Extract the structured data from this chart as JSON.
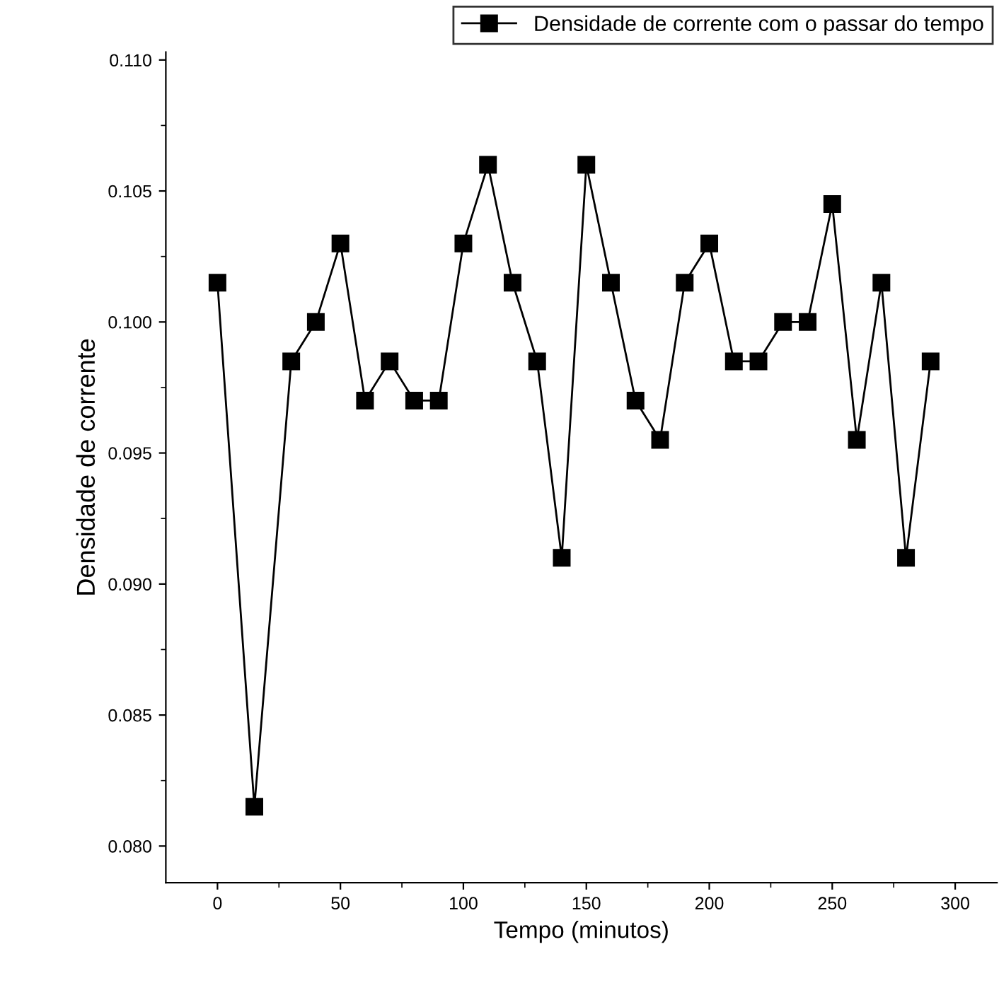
{
  "chart_data": {
    "type": "line",
    "xlabel": "Tempo (minutos)",
    "ylabel": "Densidade de corrente",
    "x": [
      0,
      15,
      30,
      40,
      50,
      60,
      70,
      80,
      90,
      100,
      110,
      120,
      130,
      140,
      150,
      160,
      170,
      180,
      190,
      200,
      210,
      220,
      230,
      240,
      250,
      260,
      270,
      280,
      290
    ],
    "series": [
      {
        "name": "Densidade de corrente com o passar do tempo",
        "color": "#000000",
        "values": [
          0.1015,
          0.0815,
          0.0985,
          0.1,
          0.103,
          0.097,
          0.0985,
          0.097,
          0.097,
          0.103,
          0.106,
          0.1015,
          0.0985,
          0.091,
          0.106,
          0.1015,
          0.097,
          0.0955,
          0.1015,
          0.103,
          0.0985,
          0.0985,
          0.1,
          0.1,
          0.1045,
          0.0955,
          0.1015,
          0.091,
          0.0985
        ]
      }
    ],
    "xlim": [
      -21,
      317
    ],
    "ylim": [
      0.0786,
      0.1103
    ],
    "xticks": [
      0,
      50,
      100,
      150,
      200,
      250,
      300
    ],
    "yticks": [
      {
        "value": 0.08,
        "label": "0.080"
      },
      {
        "value": 0.085,
        "label": "0.085"
      },
      {
        "value": 0.09,
        "label": "0.090"
      },
      {
        "value": 0.095,
        "label": "0.095"
      },
      {
        "value": 0.1,
        "label": "0.100"
      },
      {
        "value": 0.105,
        "label": "0.105"
      },
      {
        "value": 0.11,
        "label": "0.110"
      }
    ],
    "marker": "square",
    "line_style": "solid",
    "grid": false,
    "legend": "top right"
  }
}
